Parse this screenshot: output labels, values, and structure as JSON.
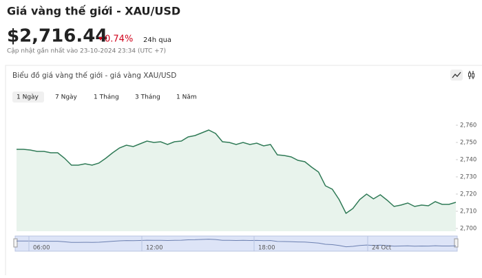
{
  "header": {
    "title": "Giá vàng thế giới - XAU/USD",
    "price": "$2,716.44",
    "change": "0.74%",
    "change_period": "24h qua",
    "updated": "Cập nhật gần nhất vào 23-10-2024 23:34 (UTC +7)"
  },
  "panel": {
    "title": "Biểu đồ giá vàng thế giới - giá vàng XAU/USD",
    "tabs": [
      "1 Ngày",
      "7 Ngày",
      "1 Tháng",
      "3 Tháng",
      "1 Năm"
    ]
  },
  "chart_data": {
    "type": "line",
    "series": [
      {
        "color": "#2f7a56",
        "values": [
          2746,
          2746,
          2745.6,
          2744.8,
          2744.8,
          2744,
          2744,
          2740.8,
          2736.8,
          2736.8,
          2737.6,
          2736.8,
          2738,
          2740.8,
          2744,
          2746.8,
          2748.4,
          2747.6,
          2749.2,
          2750.8,
          2750,
          2750.4,
          2748.8,
          2750.4,
          2750.8,
          2753.2,
          2754,
          2755.6,
          2757.2,
          2755.2,
          2750.4,
          2750,
          2748.8,
          2750,
          2748.8,
          2749.6,
          2748,
          2748.8,
          2742.8,
          2742.4,
          2741.6,
          2739.6,
          2738.8,
          2735.6,
          2732.8,
          2724.8,
          2722.8,
          2716.8,
          2708.8,
          2711.6,
          2716.8,
          2720,
          2717.2,
          2719.6,
          2716.4,
          2712.8,
          2713.6,
          2714.8,
          2712.8,
          2713.6,
          2713.2,
          2715.6,
          2714,
          2714,
          2715.2
        ]
      }
    ],
    "ylim": [
      2698.4,
      2768.8
    ],
    "yticks": [
      {
        "value": 2700,
        "label": "2,700"
      },
      {
        "value": 2710,
        "label": "2,710"
      },
      {
        "value": 2720,
        "label": "2,720"
      },
      {
        "value": 2730,
        "label": "2,730"
      },
      {
        "value": 2740,
        "label": "2,740"
      },
      {
        "value": 2750,
        "label": "2,750"
      },
      {
        "value": 2760,
        "label": "2,760"
      }
    ],
    "navigator_labels": [
      "06:00",
      "12:00",
      "18:00",
      "24 Oct"
    ]
  }
}
